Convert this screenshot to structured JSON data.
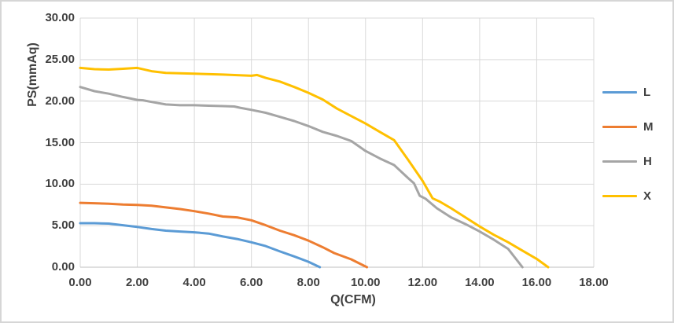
{
  "chart_data": {
    "type": "line",
    "title": "",
    "xlabel": "Q(CFM)",
    "ylabel": "PS(mmAq)",
    "xlim": [
      0,
      18
    ],
    "ylim": [
      0,
      30
    ],
    "grid": true,
    "legend_position": "right",
    "x_ticks": [
      {
        "value": 0,
        "label": "0.00"
      },
      {
        "value": 2,
        "label": "2.00"
      },
      {
        "value": 4,
        "label": "4.00"
      },
      {
        "value": 6,
        "label": "6.00"
      },
      {
        "value": 8,
        "label": "8.00"
      },
      {
        "value": 10,
        "label": "10.00"
      },
      {
        "value": 12,
        "label": "12.00"
      },
      {
        "value": 14,
        "label": "14.00"
      },
      {
        "value": 16,
        "label": "16.00"
      },
      {
        "value": 18,
        "label": "18.00"
      }
    ],
    "y_ticks": [
      {
        "value": 0,
        "label": "0.00"
      },
      {
        "value": 5,
        "label": "5.00"
      },
      {
        "value": 10,
        "label": "10.00"
      },
      {
        "value": 15,
        "label": "15.00"
      },
      {
        "value": 20,
        "label": "20.00"
      },
      {
        "value": 25,
        "label": "25.00"
      },
      {
        "value": 30,
        "label": "30.00"
      }
    ],
    "series": [
      {
        "name": "L",
        "color": "#5B9BD5",
        "points": [
          [
            0,
            5.3
          ],
          [
            0.5,
            5.3
          ],
          [
            1,
            5.25
          ],
          [
            1.5,
            5.05
          ],
          [
            2,
            4.85
          ],
          [
            2.5,
            4.6
          ],
          [
            3,
            4.4
          ],
          [
            3.5,
            4.3
          ],
          [
            4,
            4.2
          ],
          [
            4.5,
            4.05
          ],
          [
            5,
            3.7
          ],
          [
            5.5,
            3.4
          ],
          [
            6,
            3.0
          ],
          [
            6.5,
            2.55
          ],
          [
            7,
            1.9
          ],
          [
            7.5,
            1.3
          ],
          [
            8,
            0.65
          ],
          [
            8.4,
            0
          ]
        ]
      },
      {
        "name": "M",
        "color": "#ED7D31",
        "points": [
          [
            0,
            7.75
          ],
          [
            0.5,
            7.7
          ],
          [
            1,
            7.65
          ],
          [
            1.5,
            7.55
          ],
          [
            2,
            7.5
          ],
          [
            2.5,
            7.4
          ],
          [
            3,
            7.2
          ],
          [
            3.5,
            7.0
          ],
          [
            4,
            6.75
          ],
          [
            4.5,
            6.45
          ],
          [
            5,
            6.1
          ],
          [
            5.5,
            6.0
          ],
          [
            6,
            5.65
          ],
          [
            6.5,
            5.05
          ],
          [
            7,
            4.4
          ],
          [
            7.5,
            3.85
          ],
          [
            8,
            3.2
          ],
          [
            8.5,
            2.4
          ],
          [
            8.9,
            1.7
          ],
          [
            9.5,
            0.95
          ],
          [
            10.05,
            0
          ]
        ]
      },
      {
        "name": "H",
        "color": "#A5A5A5",
        "points": [
          [
            0,
            21.7
          ],
          [
            0.5,
            21.2
          ],
          [
            1,
            20.9
          ],
          [
            1.5,
            20.5
          ],
          [
            2,
            20.15
          ],
          [
            2.2,
            20.1
          ],
          [
            2.5,
            19.9
          ],
          [
            3,
            19.6
          ],
          [
            3.5,
            19.5
          ],
          [
            4,
            19.5
          ],
          [
            4.5,
            19.45
          ],
          [
            5,
            19.4
          ],
          [
            5.4,
            19.35
          ],
          [
            5.6,
            19.2
          ],
          [
            6,
            18.95
          ],
          [
            6.5,
            18.6
          ],
          [
            7,
            18.1
          ],
          [
            7.5,
            17.6
          ],
          [
            8,
            17.0
          ],
          [
            8.5,
            16.3
          ],
          [
            9,
            15.8
          ],
          [
            9.5,
            15.2
          ],
          [
            10,
            14.0
          ],
          [
            10.5,
            13.1
          ],
          [
            11,
            12.3
          ],
          [
            11.5,
            10.7
          ],
          [
            11.7,
            10.1
          ],
          [
            11.9,
            8.6
          ],
          [
            12.1,
            8.25
          ],
          [
            12.5,
            7.1
          ],
          [
            13,
            6.0
          ],
          [
            13.5,
            5.2
          ],
          [
            14,
            4.3
          ],
          [
            14.5,
            3.3
          ],
          [
            15,
            2.2
          ],
          [
            15.5,
            0
          ]
        ]
      },
      {
        "name": "X",
        "color": "#FFC000",
        "points": [
          [
            0,
            24.0
          ],
          [
            0.5,
            23.85
          ],
          [
            1,
            23.8
          ],
          [
            1.5,
            23.9
          ],
          [
            2,
            24.0
          ],
          [
            2.5,
            23.6
          ],
          [
            3,
            23.4
          ],
          [
            4,
            23.3
          ],
          [
            5,
            23.2
          ],
          [
            6,
            23.05
          ],
          [
            6.2,
            23.15
          ],
          [
            6.5,
            22.8
          ],
          [
            7,
            22.35
          ],
          [
            7.5,
            21.7
          ],
          [
            8,
            21.0
          ],
          [
            8.5,
            20.2
          ],
          [
            9,
            19.1
          ],
          [
            9.5,
            18.2
          ],
          [
            10,
            17.3
          ],
          [
            10.5,
            16.3
          ],
          [
            11,
            15.3
          ],
          [
            11.5,
            12.9
          ],
          [
            12,
            10.4
          ],
          [
            12.35,
            8.3
          ],
          [
            12.6,
            7.9
          ],
          [
            13,
            7.1
          ],
          [
            13.5,
            6.0
          ],
          [
            14,
            4.9
          ],
          [
            14.5,
            3.9
          ],
          [
            15,
            3.0
          ],
          [
            15.5,
            2.0
          ],
          [
            16,
            1.0
          ],
          [
            16.4,
            0
          ]
        ]
      }
    ]
  },
  "colors": {
    "gridline": "#d9d9d9",
    "axis_line": "#bfbfbf",
    "label_text": "#404040",
    "background": "#ffffff",
    "frame_border": "#d6d6d6"
  }
}
